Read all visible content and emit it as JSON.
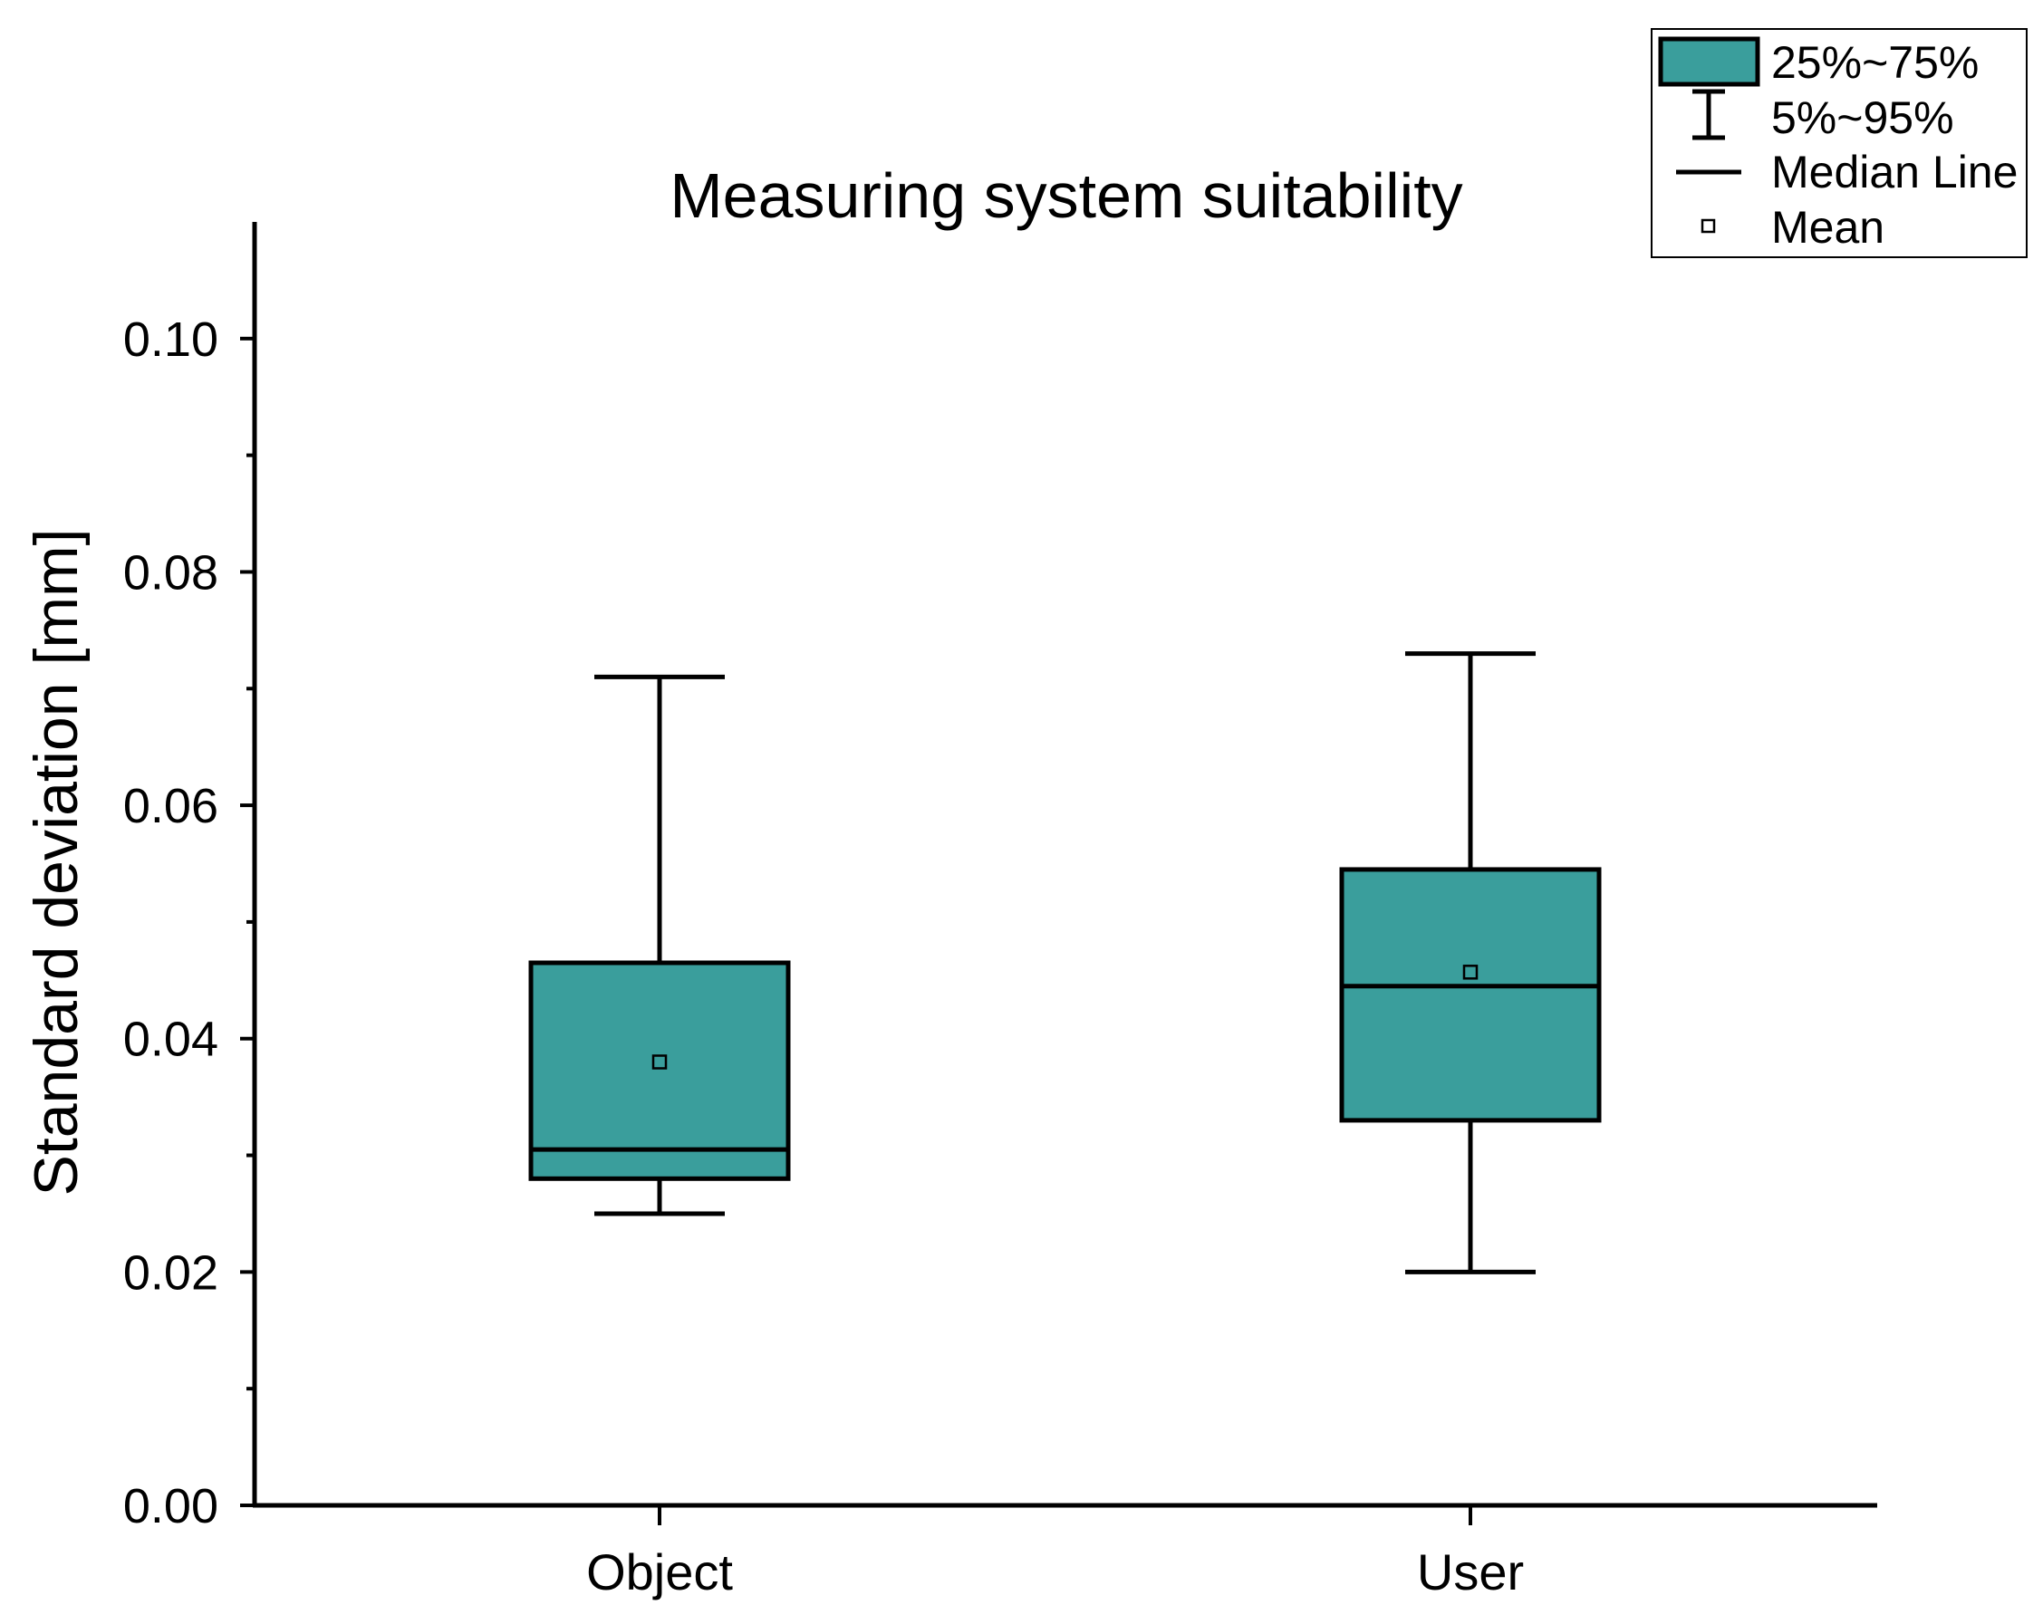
{
  "chart_data": {
    "type": "box",
    "title": "Measuring system suitability",
    "xlabel": "",
    "ylabel": "Standard deviation [mm]",
    "ylim": [
      0,
      0.11
    ],
    "yticks": [
      0.0,
      0.02,
      0.04,
      0.06,
      0.08,
      0.1
    ],
    "ytick_labels": [
      "0.00",
      "0.02",
      "0.04",
      "0.06",
      "0.08",
      "0.10"
    ],
    "categories": [
      "Object",
      "User"
    ],
    "boxes": [
      {
        "category": "Object",
        "whisker_low": 0.025,
        "q1": 0.028,
        "median": 0.0305,
        "q3": 0.0465,
        "whisker_high": 0.071,
        "mean": 0.038
      },
      {
        "category": "User",
        "whisker_low": 0.02,
        "q1": 0.033,
        "median": 0.0445,
        "q3": 0.0545,
        "whisker_high": 0.073,
        "mean": 0.0457
      }
    ],
    "box_color": "#3a9e9c",
    "legend": {
      "position": "top-right",
      "entries": [
        "25%~75%",
        "5%~95%",
        "Median Line",
        "Mean"
      ]
    }
  }
}
